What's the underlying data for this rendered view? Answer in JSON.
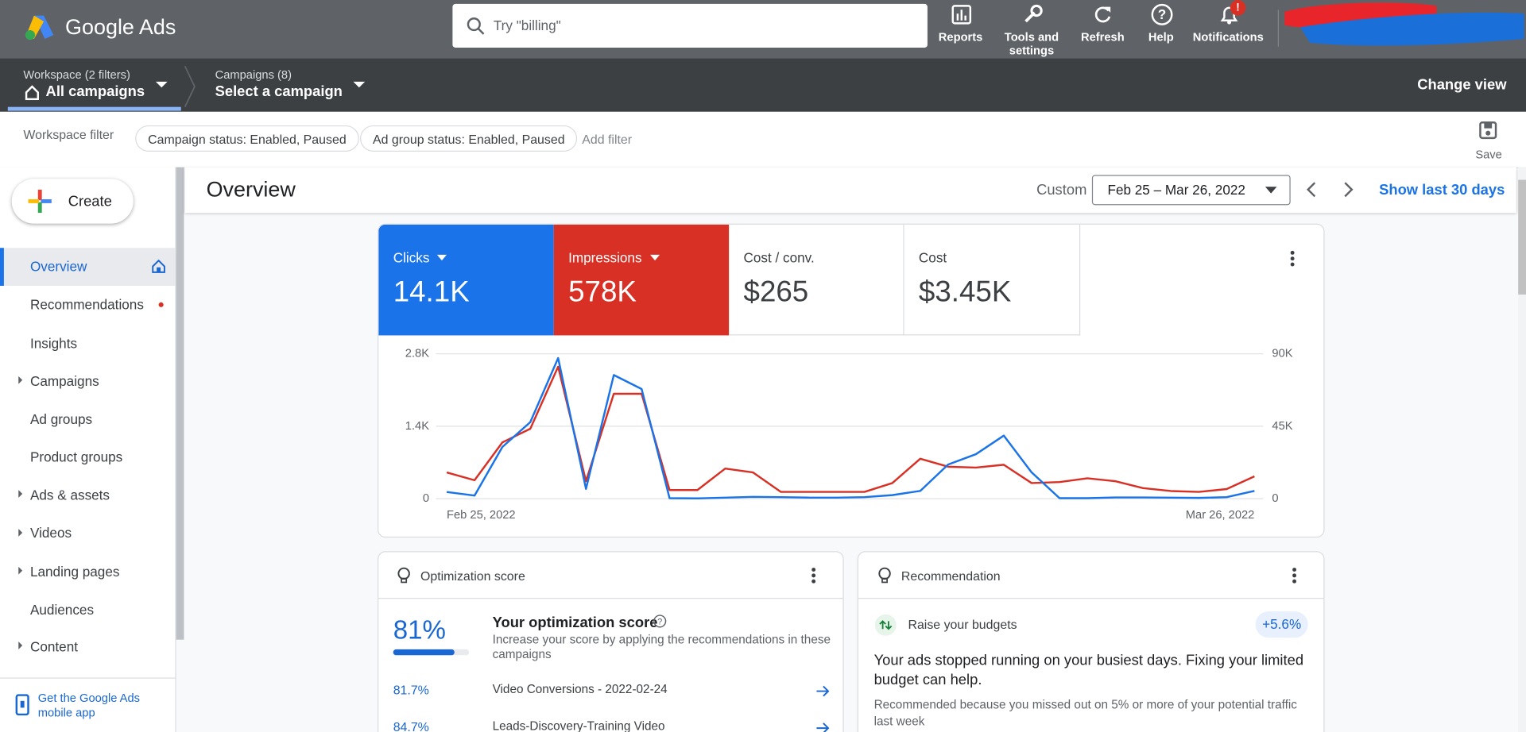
{
  "header": {
    "product": "Google Ads",
    "search_placeholder": "Try \"billing\"",
    "actions": [
      "Reports",
      "Tools and settings",
      "Refresh",
      "Help",
      "Notifications"
    ],
    "notification_badge": "!"
  },
  "nav": {
    "workspace_label": "Workspace (2 filters)",
    "workspace_value": "All campaigns",
    "campaigns_label": "Campaigns (8)",
    "campaigns_value": "Select a campaign",
    "change_view": "Change view"
  },
  "filters": {
    "label": "Workspace filter",
    "chips": [
      "Campaign status: Enabled, Paused",
      "Ad group status: Enabled, Paused"
    ],
    "add": "Add filter",
    "save": "Save"
  },
  "sidebar": {
    "create": "Create",
    "items": [
      "Overview",
      "Recommendations",
      "Insights",
      "Campaigns",
      "Ad groups",
      "Product groups",
      "Ads & assets",
      "Videos",
      "Landing pages",
      "Audiences",
      "Content"
    ],
    "app_link": "Get the Google Ads mobile app"
  },
  "overview": {
    "title": "Overview",
    "range_type": "Custom",
    "date_range": "Feb 25 – Mar 26, 2022",
    "show_last": "Show last 30 days"
  },
  "metrics": [
    {
      "value": "14.1K"
    },
    {
      "value": "578K"
    },
    {
      "name": "Cost / conv.",
      "value": "$265"
    },
    {
      "name": "Cost",
      "value": "$3.45K"
    }
  ],
  "chart_data": {
    "type": "line",
    "categories": [
      "Feb 25, 2022",
      null,
      null,
      null,
      null,
      null,
      null,
      null,
      null,
      null,
      null,
      null,
      null,
      null,
      null,
      null,
      null,
      null,
      null,
      null,
      null,
      null,
      null,
      null,
      null,
      null,
      null,
      null,
      null,
      "Mar 26, 2022"
    ],
    "series": [
      {
        "name": "Clicks",
        "color": "#1a73e8",
        "values": [
          130,
          60,
          1000,
          1480,
          2720,
          190,
          2390,
          2120,
          10,
          5,
          20,
          35,
          30,
          20,
          20,
          30,
          70,
          150,
          660,
          860,
          1220,
          510,
          10,
          10,
          25,
          25,
          20,
          15,
          30,
          150
        ]
      },
      {
        "name": "Impressions",
        "color": "#d93025",
        "axis": "y2",
        "values": [
          16300,
          11500,
          35000,
          43500,
          82000,
          10900,
          65200,
          65200,
          5400,
          5400,
          18700,
          16300,
          4200,
          4200,
          4200,
          4200,
          9700,
          24800,
          19900,
          19300,
          21100,
          9700,
          10300,
          12700,
          10900,
          6600,
          4800,
          4200,
          6000,
          13900
        ]
      }
    ],
    "ylim": [
      0,
      2800
    ],
    "yticks": [
      0,
      {
        "value": 1400,
        "label": "1.4K"
      },
      {
        "value": 2800,
        "label": "2.8K"
      }
    ],
    "y2lim": [
      0,
      90000
    ],
    "y2ticks": [
      0,
      {
        "value": 45000,
        "label": "45K"
      },
      {
        "value": 90000,
        "label": "90K"
      }
    ],
    "grid": true
  },
  "optimization": {
    "title": "Optimization score",
    "score": "81%",
    "heading": "Your optimization score",
    "description": "Increase your score by applying the recommendations in these campaigns",
    "campaigns": [
      {
        "score": "81.7%",
        "name": "Video Conversions - 2022-02-24"
      },
      {
        "score": "84.7%",
        "name": "Leads-Discovery-Training Video"
      }
    ]
  },
  "recommendation": {
    "title": "Recommendation",
    "label": "Raise your budgets",
    "badge": "+5.6%",
    "heading": "Your ads stopped running on your busiest days. Fixing your limited budget can help.",
    "note": "Recommended because you missed out on 5% or more of your potential traffic last week"
  }
}
